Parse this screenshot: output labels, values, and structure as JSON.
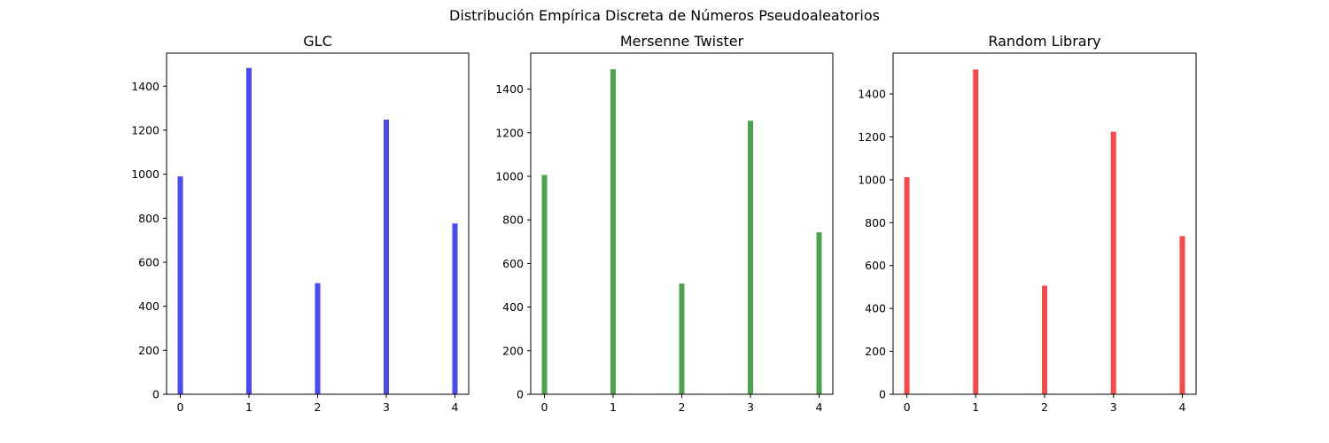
{
  "figure": {
    "suptitle": "Distribución Empírica Discreta de Números Pseudoaleatorios"
  },
  "chart_data": [
    {
      "type": "bar",
      "title": "GLC",
      "color": "#4a4af5",
      "x": [
        0,
        1,
        2,
        3,
        4
      ],
      "values": [
        990,
        1483,
        505,
        1248,
        776
      ],
      "xlim": [
        -0.2,
        4.2
      ],
      "ylim": [
        0,
        1550
      ],
      "xticks": [
        "0",
        "1",
        "2",
        "3",
        "4"
      ],
      "yticks": [
        0,
        200,
        400,
        600,
        800,
        1000,
        1200,
        1400
      ],
      "grid": false
    },
    {
      "type": "bar",
      "title": "Mersenne Twister",
      "color": "#4da34d",
      "x": [
        0,
        1,
        2,
        3,
        4
      ],
      "values": [
        1006,
        1491,
        508,
        1255,
        743
      ],
      "xlim": [
        -0.2,
        4.2
      ],
      "ylim": [
        0,
        1565
      ],
      "xticks": [
        "0",
        "1",
        "2",
        "3",
        "4"
      ],
      "yticks": [
        0,
        200,
        400,
        600,
        800,
        1000,
        1200,
        1400
      ],
      "grid": false
    },
    {
      "type": "bar",
      "title": "Random Library",
      "color": "#f54a4a",
      "x": [
        0,
        1,
        2,
        3,
        4
      ],
      "values": [
        1012,
        1514,
        506,
        1224,
        737
      ],
      "xlim": [
        -0.2,
        4.2
      ],
      "ylim": [
        0,
        1590
      ],
      "xticks": [
        "0",
        "1",
        "2",
        "3",
        "4"
      ],
      "yticks": [
        0,
        200,
        400,
        600,
        800,
        1000,
        1200,
        1400
      ],
      "grid": false
    }
  ]
}
